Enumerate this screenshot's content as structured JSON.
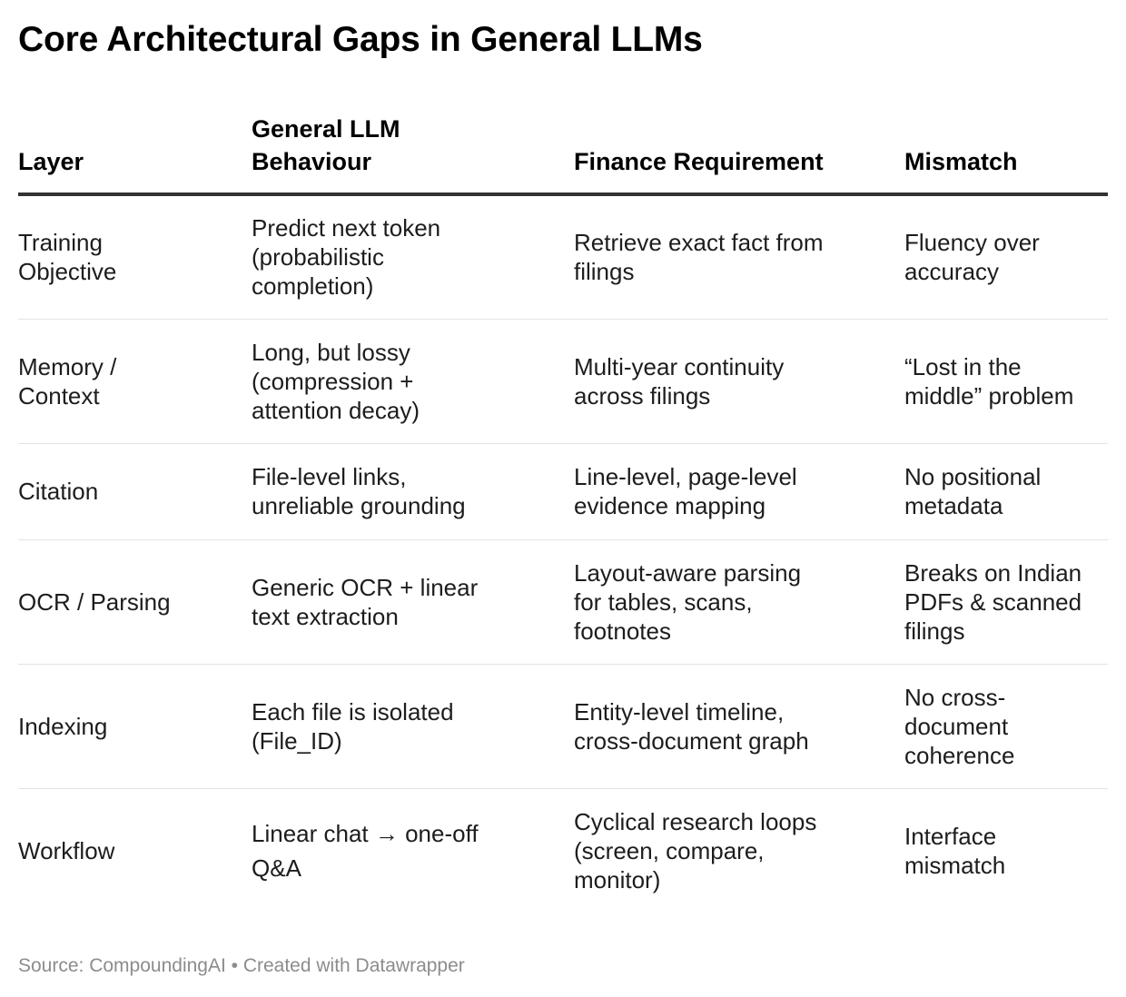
{
  "title": "Core Architectural Gaps in General LLMs",
  "chart_data": {
    "type": "table",
    "title": "Core Architectural Gaps in General LLMs",
    "columns": [
      "Layer",
      "General LLM Behaviour",
      "Finance Requirement",
      "Mismatch"
    ],
    "rows": [
      [
        "Training Objective",
        "Predict next token (probabilistic completion)",
        "Retrieve exact fact from filings",
        "Fluency over accuracy"
      ],
      [
        "Memory / Context",
        "Long, but lossy (compression + attention decay)",
        "Multi-year continuity across filings",
        "“Lost in the middle” problem"
      ],
      [
        "Citation",
        "File-level links, unreliable grounding",
        "Line-level, page-level evidence mapping",
        "No positional metadata"
      ],
      [
        "OCR / Parsing",
        "Generic OCR + linear text extraction",
        "Layout-aware parsing for tables, scans, footnotes",
        "Breaks on Indian PDFs & scanned filings"
      ],
      [
        "Indexing",
        "Each file is isolated (File_ID)",
        "Entity-level timeline, cross-document graph",
        "No cross-document coherence"
      ],
      [
        "Workflow",
        "Linear chat → one-off Q&A",
        "Cyclical research loops (screen, compare, monitor)",
        "Interface mismatch"
      ]
    ],
    "source": "Source: CompoundingAI • Created with Datawrapper"
  }
}
